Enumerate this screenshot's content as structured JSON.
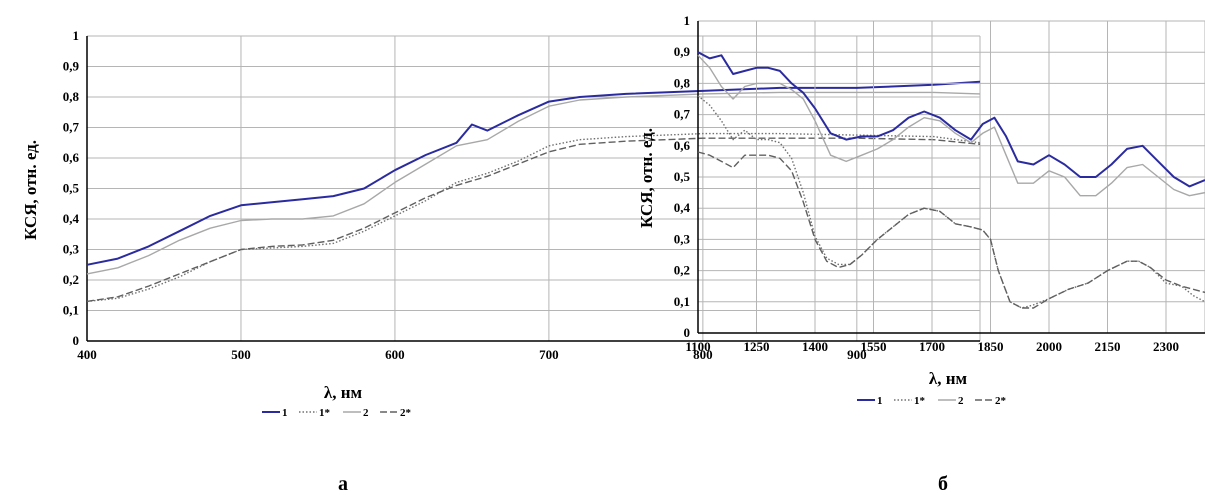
{
  "panel_labels": [
    "а",
    "б"
  ],
  "chart_data": [
    {
      "type": "line",
      "xlabel": "λ, нм",
      "ylabel": "КСЯ, отн. ед.",
      "xlim": [
        400,
        980
      ],
      "ylim": [
        0,
        1
      ],
      "xticks": [
        400,
        500,
        600,
        700,
        800,
        900
      ],
      "yticks": [
        0,
        0.1,
        0.2,
        0.3,
        0.4,
        0.5,
        0.6,
        0.7,
        0.8,
        0.9,
        1
      ],
      "ytick_labels": [
        "0",
        "0,1",
        "0,2",
        "0,3",
        "0,4",
        "0,5",
        "0,6",
        "0,7",
        "0,8",
        "0,9",
        "1"
      ],
      "grid": true,
      "legend_position": "bottom",
      "series": [
        {
          "name": "1",
          "color": "#2b2ba0",
          "style": "solid",
          "x": [
            400,
            420,
            440,
            460,
            480,
            500,
            520,
            540,
            560,
            580,
            600,
            620,
            640,
            650,
            660,
            680,
            700,
            720,
            750,
            800,
            850,
            900,
            950,
            980
          ],
          "y": [
            0.25,
            0.27,
            0.31,
            0.36,
            0.41,
            0.445,
            0.455,
            0.465,
            0.475,
            0.5,
            0.56,
            0.61,
            0.65,
            0.71,
            0.69,
            0.74,
            0.785,
            0.8,
            0.81,
            0.82,
            0.83,
            0.83,
            0.84,
            0.85
          ]
        },
        {
          "name": "1*",
          "color": "#707070",
          "style": "dotted",
          "x": [
            400,
            420,
            440,
            460,
            480,
            500,
            520,
            540,
            560,
            580,
            600,
            620,
            640,
            660,
            680,
            700,
            720,
            750,
            800,
            850,
            900,
            950,
            980
          ],
          "y": [
            0.13,
            0.14,
            0.17,
            0.21,
            0.26,
            0.3,
            0.305,
            0.31,
            0.32,
            0.36,
            0.41,
            0.46,
            0.52,
            0.55,
            0.59,
            0.64,
            0.66,
            0.67,
            0.68,
            0.68,
            0.675,
            0.67,
            0.65
          ]
        },
        {
          "name": "2",
          "color": "#a8a8a8",
          "style": "solid",
          "x": [
            400,
            420,
            440,
            460,
            480,
            500,
            520,
            540,
            560,
            580,
            600,
            620,
            640,
            660,
            680,
            700,
            720,
            750,
            800,
            850,
            900,
            950,
            980
          ],
          "y": [
            0.22,
            0.24,
            0.28,
            0.33,
            0.37,
            0.395,
            0.4,
            0.4,
            0.41,
            0.45,
            0.52,
            0.58,
            0.64,
            0.66,
            0.72,
            0.77,
            0.79,
            0.8,
            0.81,
            0.815,
            0.815,
            0.815,
            0.81
          ]
        },
        {
          "name": "2*",
          "color": "#606060",
          "style": "dashed",
          "x": [
            400,
            420,
            440,
            460,
            480,
            500,
            520,
            540,
            560,
            580,
            600,
            620,
            640,
            660,
            680,
            700,
            720,
            750,
            800,
            850,
            900,
            950,
            980
          ],
          "y": [
            0.13,
            0.145,
            0.18,
            0.22,
            0.26,
            0.3,
            0.31,
            0.315,
            0.33,
            0.37,
            0.42,
            0.47,
            0.51,
            0.54,
            0.58,
            0.62,
            0.645,
            0.655,
            0.665,
            0.665,
            0.665,
            0.66,
            0.645
          ]
        }
      ]
    },
    {
      "type": "line",
      "xlabel": "λ, нм",
      "ylabel": "КСЯ, отн. ед.",
      "xlim": [
        1100,
        2400
      ],
      "ylim": [
        0,
        1
      ],
      "xticks": [
        1100,
        1250,
        1400,
        1550,
        1700,
        1850,
        2000,
        2150,
        2300
      ],
      "yticks": [
        0,
        0.1,
        0.2,
        0.3,
        0.4,
        0.5,
        0.6,
        0.7,
        0.8,
        0.9,
        1
      ],
      "ytick_labels": [
        "0",
        "0,1",
        "0,2",
        "0,3",
        "0,4",
        "0,5",
        "0,6",
        "0,7",
        "0,8",
        "0,9",
        "1"
      ],
      "grid": true,
      "legend_position": "bottom",
      "series": [
        {
          "name": "1",
          "color": "#2b2ba0",
          "style": "solid",
          "x": [
            1100,
            1130,
            1160,
            1190,
            1220,
            1250,
            1280,
            1310,
            1340,
            1370,
            1400,
            1440,
            1480,
            1520,
            1560,
            1600,
            1640,
            1680,
            1720,
            1760,
            1800,
            1830,
            1860,
            1890,
            1920,
            1960,
            2000,
            2040,
            2080,
            2120,
            2160,
            2200,
            2240,
            2280,
            2320,
            2360,
            2400
          ],
          "y": [
            0.9,
            0.88,
            0.89,
            0.83,
            0.84,
            0.85,
            0.85,
            0.84,
            0.8,
            0.77,
            0.72,
            0.64,
            0.62,
            0.63,
            0.63,
            0.65,
            0.69,
            0.71,
            0.69,
            0.65,
            0.62,
            0.67,
            0.69,
            0.63,
            0.55,
            0.54,
            0.57,
            0.54,
            0.5,
            0.5,
            0.54,
            0.59,
            0.6,
            0.55,
            0.5,
            0.47,
            0.49
          ]
        },
        {
          "name": "1*",
          "color": "#707070",
          "style": "dotted",
          "x": [
            1100,
            1130,
            1160,
            1190,
            1220,
            1250,
            1280,
            1310,
            1340,
            1370,
            1400,
            1430,
            1460,
            1490,
            1520,
            1560,
            1600,
            1640,
            1680,
            1720,
            1760,
            1800,
            1830,
            1850,
            1870,
            1900,
            1930,
            1960,
            2000,
            2050,
            2100,
            2150,
            2200,
            2230,
            2260,
            2300,
            2340,
            2370,
            2400
          ],
          "y": [
            0.76,
            0.73,
            0.68,
            0.62,
            0.65,
            0.62,
            0.62,
            0.61,
            0.56,
            0.45,
            0.31,
            0.24,
            0.22,
            0.22,
            0.25,
            0.3,
            0.34,
            0.38,
            0.4,
            0.39,
            0.35,
            0.34,
            0.33,
            0.3,
            0.2,
            0.1,
            0.08,
            0.09,
            0.11,
            0.14,
            0.16,
            0.2,
            0.23,
            0.23,
            0.21,
            0.16,
            0.15,
            0.12,
            0.1
          ]
        },
        {
          "name": "2",
          "color": "#a8a8a8",
          "style": "solid",
          "x": [
            1100,
            1130,
            1160,
            1190,
            1220,
            1250,
            1280,
            1310,
            1340,
            1370,
            1400,
            1440,
            1480,
            1520,
            1560,
            1600,
            1640,
            1680,
            1720,
            1760,
            1800,
            1830,
            1860,
            1890,
            1920,
            1960,
            2000,
            2040,
            2080,
            2120,
            2160,
            2200,
            2240,
            2280,
            2320,
            2360,
            2400
          ],
          "y": [
            0.89,
            0.85,
            0.79,
            0.75,
            0.79,
            0.8,
            0.8,
            0.8,
            0.78,
            0.75,
            0.68,
            0.57,
            0.55,
            0.57,
            0.59,
            0.62,
            0.66,
            0.69,
            0.68,
            0.64,
            0.61,
            0.64,
            0.66,
            0.57,
            0.48,
            0.48,
            0.52,
            0.5,
            0.44,
            0.44,
            0.48,
            0.53,
            0.54,
            0.5,
            0.46,
            0.44,
            0.45
          ]
        },
        {
          "name": "2*",
          "color": "#606060",
          "style": "dashed",
          "x": [
            1100,
            1130,
            1160,
            1190,
            1220,
            1250,
            1280,
            1310,
            1340,
            1370,
            1400,
            1430,
            1460,
            1490,
            1520,
            1560,
            1600,
            1640,
            1680,
            1720,
            1760,
            1800,
            1830,
            1850,
            1870,
            1900,
            1930,
            1960,
            2000,
            2050,
            2100,
            2150,
            2200,
            2230,
            2260,
            2300,
            2340,
            2370,
            2400
          ],
          "y": [
            0.58,
            0.57,
            0.55,
            0.53,
            0.57,
            0.57,
            0.57,
            0.56,
            0.52,
            0.42,
            0.3,
            0.23,
            0.21,
            0.22,
            0.25,
            0.3,
            0.34,
            0.38,
            0.4,
            0.39,
            0.35,
            0.34,
            0.33,
            0.3,
            0.2,
            0.1,
            0.08,
            0.08,
            0.11,
            0.14,
            0.16,
            0.2,
            0.23,
            0.23,
            0.21,
            0.17,
            0.15,
            0.14,
            0.13
          ]
        }
      ]
    }
  ]
}
